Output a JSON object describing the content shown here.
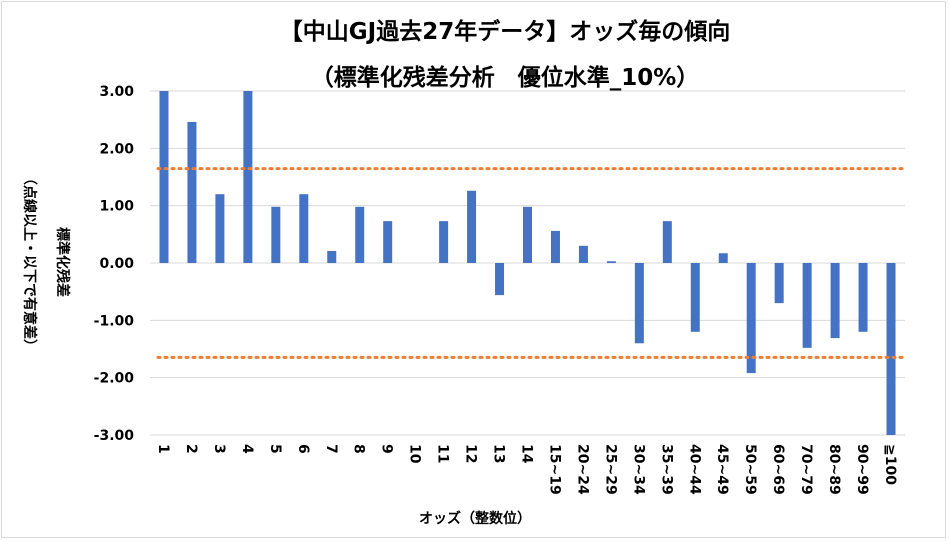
{
  "chart_data": {
    "type": "bar",
    "title": "【中山GJ過去27年データ】オッズ毎の傾向",
    "subtitle": "（標準化残差分析　優位水準_10%）",
    "xlabel": "オッズ（整数位）",
    "ylabel": "標準化残差",
    "ylabel2": "（点線以上・以下で有意差）",
    "ylim": [
      -3,
      3
    ],
    "yticks": [
      "3.00",
      "2.00",
      "1.00",
      "0.00",
      "-1.00",
      "-2.00",
      "-3.00"
    ],
    "grid": true,
    "categories": [
      "1",
      "2",
      "3",
      "4",
      "5",
      "6",
      "7",
      "8",
      "9",
      "10",
      "11",
      "12",
      "13",
      "14",
      "15~19",
      "20~24",
      "25~29",
      "30~34",
      "35~39",
      "40~44",
      "45~49",
      "50~59",
      "60~69",
      "70~79",
      "80~89",
      "90~99",
      "≧100"
    ],
    "values": [
      3.0,
      2.46,
      1.2,
      3.0,
      0.98,
      1.2,
      0.21,
      0.98,
      0.73,
      0,
      0.73,
      1.26,
      -0.56,
      0.98,
      0.56,
      0.3,
      0.03,
      -1.4,
      0.73,
      -1.2,
      0.17,
      -1.92,
      -0.7,
      -1.48,
      -1.31,
      -1.2,
      -3.0
    ],
    "threshold_lines": [
      1.645,
      -1.645
    ],
    "colors": {
      "bar": "#4472c4",
      "threshold": "#ed7d31",
      "grid": "#d9d9d9"
    }
  }
}
